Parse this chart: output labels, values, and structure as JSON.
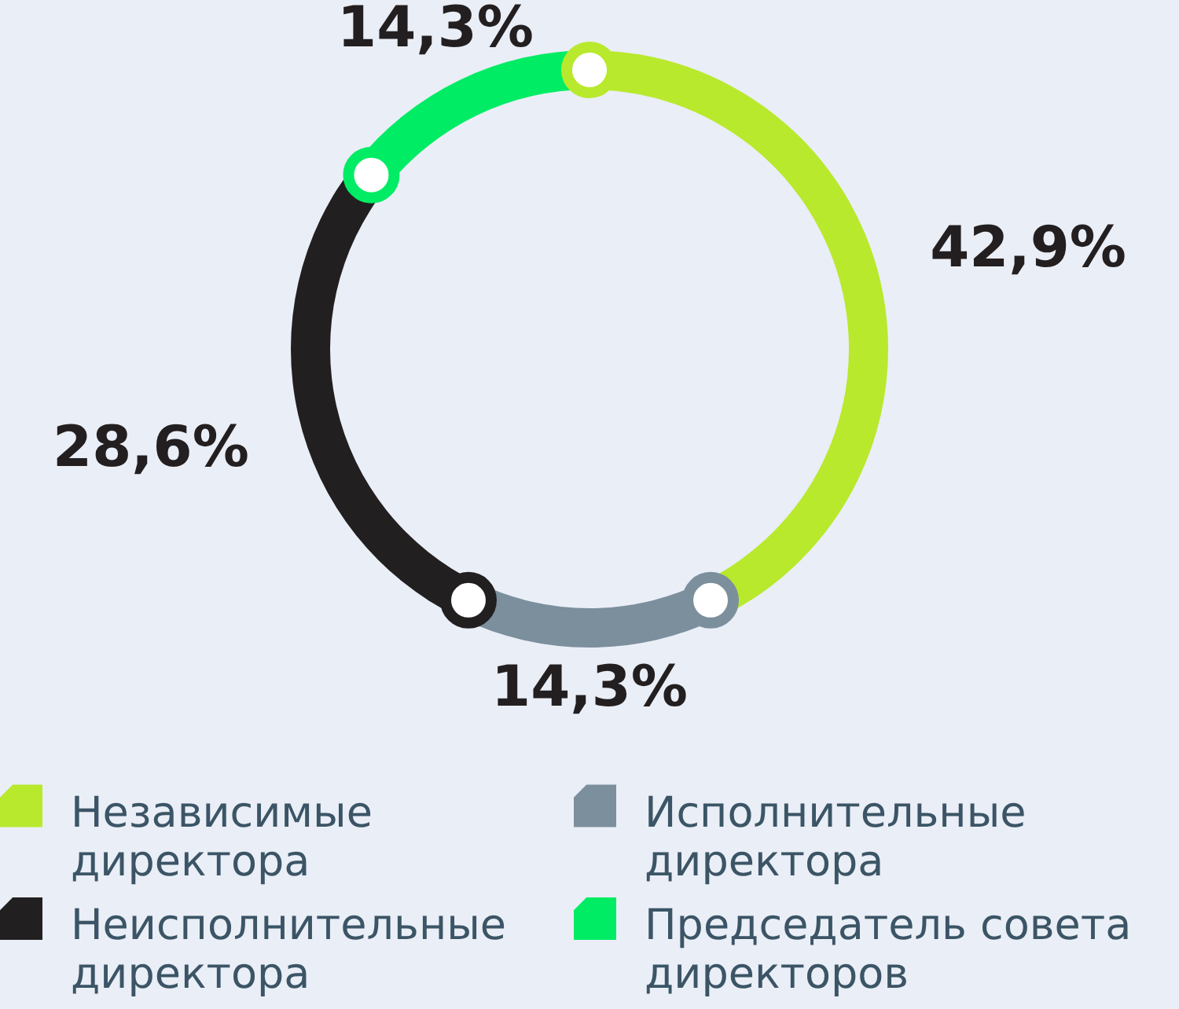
{
  "chart_data": {
    "type": "donut",
    "categories": [
      "Независимые директора",
      "Исполнительные директора",
      "Неисполнительные директора",
      "Председатель совета директоров"
    ],
    "values": [
      42.9,
      14.3,
      28.6,
      14.3
    ],
    "colors": [
      "#b8e92c",
      "#7b8f9d",
      "#221f20",
      "#00ec64"
    ],
    "value_labels": [
      "42,9%",
      "14,3%",
      "28,6%",
      "14,3%"
    ],
    "legend": "bottom"
  }
}
